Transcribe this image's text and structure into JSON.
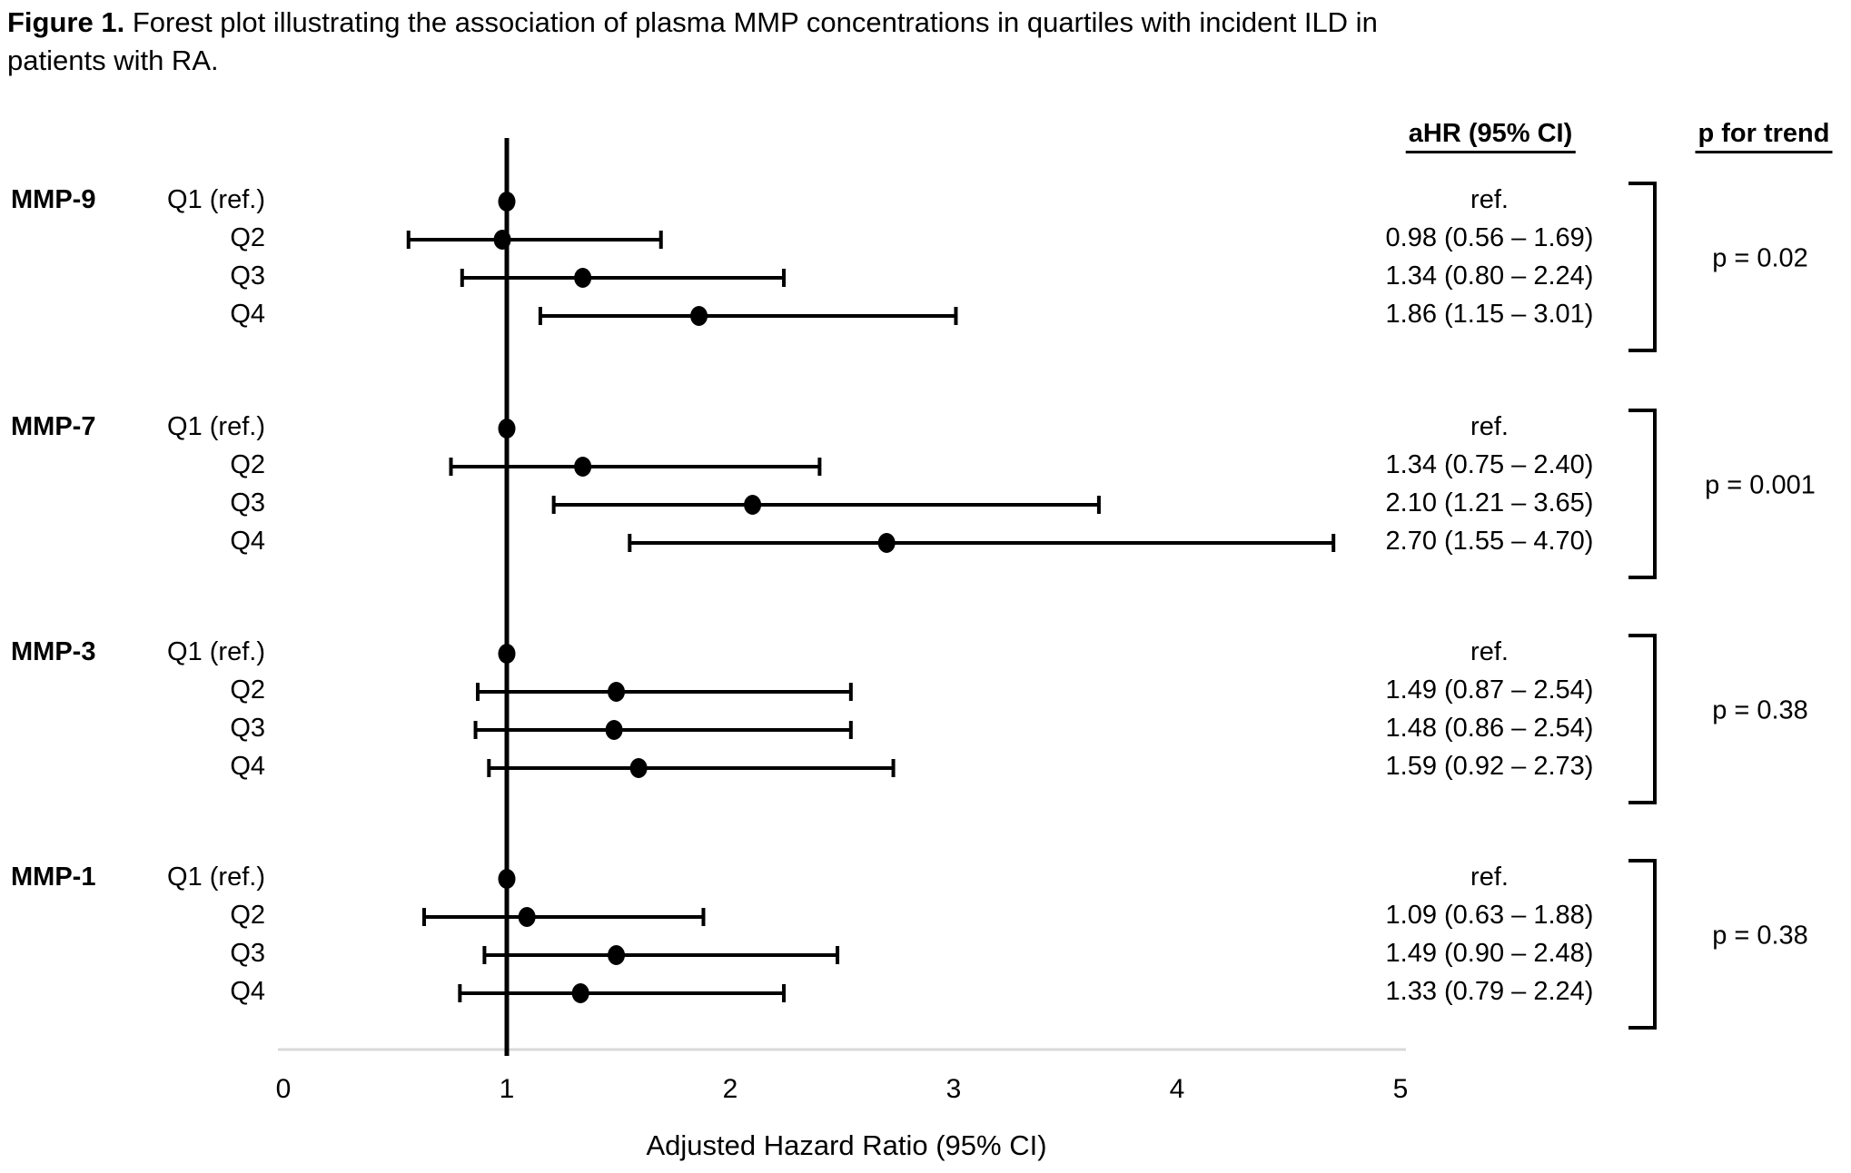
{
  "figure_title": {
    "label": "Figure 1.",
    "text": "Forest plot illustrating the association of plasma MMP concentrations in quartiles with incident ILD in patients with RA."
  },
  "columns": {
    "ahr_header": "aHR (95% CI)",
    "p_header": "p for trend"
  },
  "chart_data": {
    "type": "forest",
    "xlabel": "Adjusted Hazard Ratio (95% CI)",
    "xlim": [
      0,
      5
    ],
    "x_ticks": [
      "0",
      "1",
      "2",
      "3",
      "4",
      "5"
    ],
    "reference_line_x": 1,
    "grid": false,
    "groups": [
      {
        "name": "MMP-9",
        "p_for_trend": "p = 0.02",
        "rows": [
          {
            "label": "Q1 (ref.)",
            "ahr_text": "ref.",
            "est": 1.0,
            "lo": null,
            "hi": null
          },
          {
            "label": "Q2",
            "ahr_text": "0.98 (0.56 – 1.69)",
            "est": 0.98,
            "lo": 0.56,
            "hi": 1.69
          },
          {
            "label": "Q3",
            "ahr_text": "1.34 (0.80 – 2.24)",
            "est": 1.34,
            "lo": 0.8,
            "hi": 2.24
          },
          {
            "label": "Q4",
            "ahr_text": "1.86 (1.15 – 3.01)",
            "est": 1.86,
            "lo": 1.15,
            "hi": 3.01
          }
        ]
      },
      {
        "name": "MMP-7",
        "p_for_trend": "p = 0.001",
        "rows": [
          {
            "label": "Q1 (ref.)",
            "ahr_text": "ref.",
            "est": 1.0,
            "lo": null,
            "hi": null
          },
          {
            "label": "Q2",
            "ahr_text": "1.34 (0.75 – 2.40)",
            "est": 1.34,
            "lo": 0.75,
            "hi": 2.4
          },
          {
            "label": "Q3",
            "ahr_text": "2.10 (1.21 – 3.65)",
            "est": 2.1,
            "lo": 1.21,
            "hi": 3.65
          },
          {
            "label": "Q4",
            "ahr_text": "2.70 (1.55 – 4.70)",
            "est": 2.7,
            "lo": 1.55,
            "hi": 4.7
          }
        ]
      },
      {
        "name": "MMP-3",
        "p_for_trend": "p = 0.38",
        "rows": [
          {
            "label": "Q1 (ref.)",
            "ahr_text": "ref.",
            "est": 1.0,
            "lo": null,
            "hi": null
          },
          {
            "label": "Q2",
            "ahr_text": "1.49 (0.87 – 2.54)",
            "est": 1.49,
            "lo": 0.87,
            "hi": 2.54
          },
          {
            "label": "Q3",
            "ahr_text": "1.48 (0.86 – 2.54)",
            "est": 1.48,
            "lo": 0.86,
            "hi": 2.54
          },
          {
            "label": "Q4",
            "ahr_text": "1.59 (0.92 – 2.73)",
            "est": 1.59,
            "lo": 0.92,
            "hi": 2.73
          }
        ]
      },
      {
        "name": "MMP-1",
        "p_for_trend": "p = 0.38",
        "rows": [
          {
            "label": "Q1 (ref.)",
            "ahr_text": "ref.",
            "est": 1.0,
            "lo": null,
            "hi": null
          },
          {
            "label": "Q2",
            "ahr_text": "1.09 (0.63 – 1.88)",
            "est": 1.09,
            "lo": 0.63,
            "hi": 1.88
          },
          {
            "label": "Q3",
            "ahr_text": "1.49 (0.90 – 2.48)",
            "est": 1.49,
            "lo": 0.9,
            "hi": 2.48
          },
          {
            "label": "Q4",
            "ahr_text": "1.33 (0.79 – 2.24)",
            "est": 1.33,
            "lo": 0.79,
            "hi": 2.24
          }
        ]
      }
    ]
  },
  "colors": {
    "text": "#000000",
    "marker": "#000000",
    "line": "#000000",
    "axis_line": "#d9d9d9"
  }
}
